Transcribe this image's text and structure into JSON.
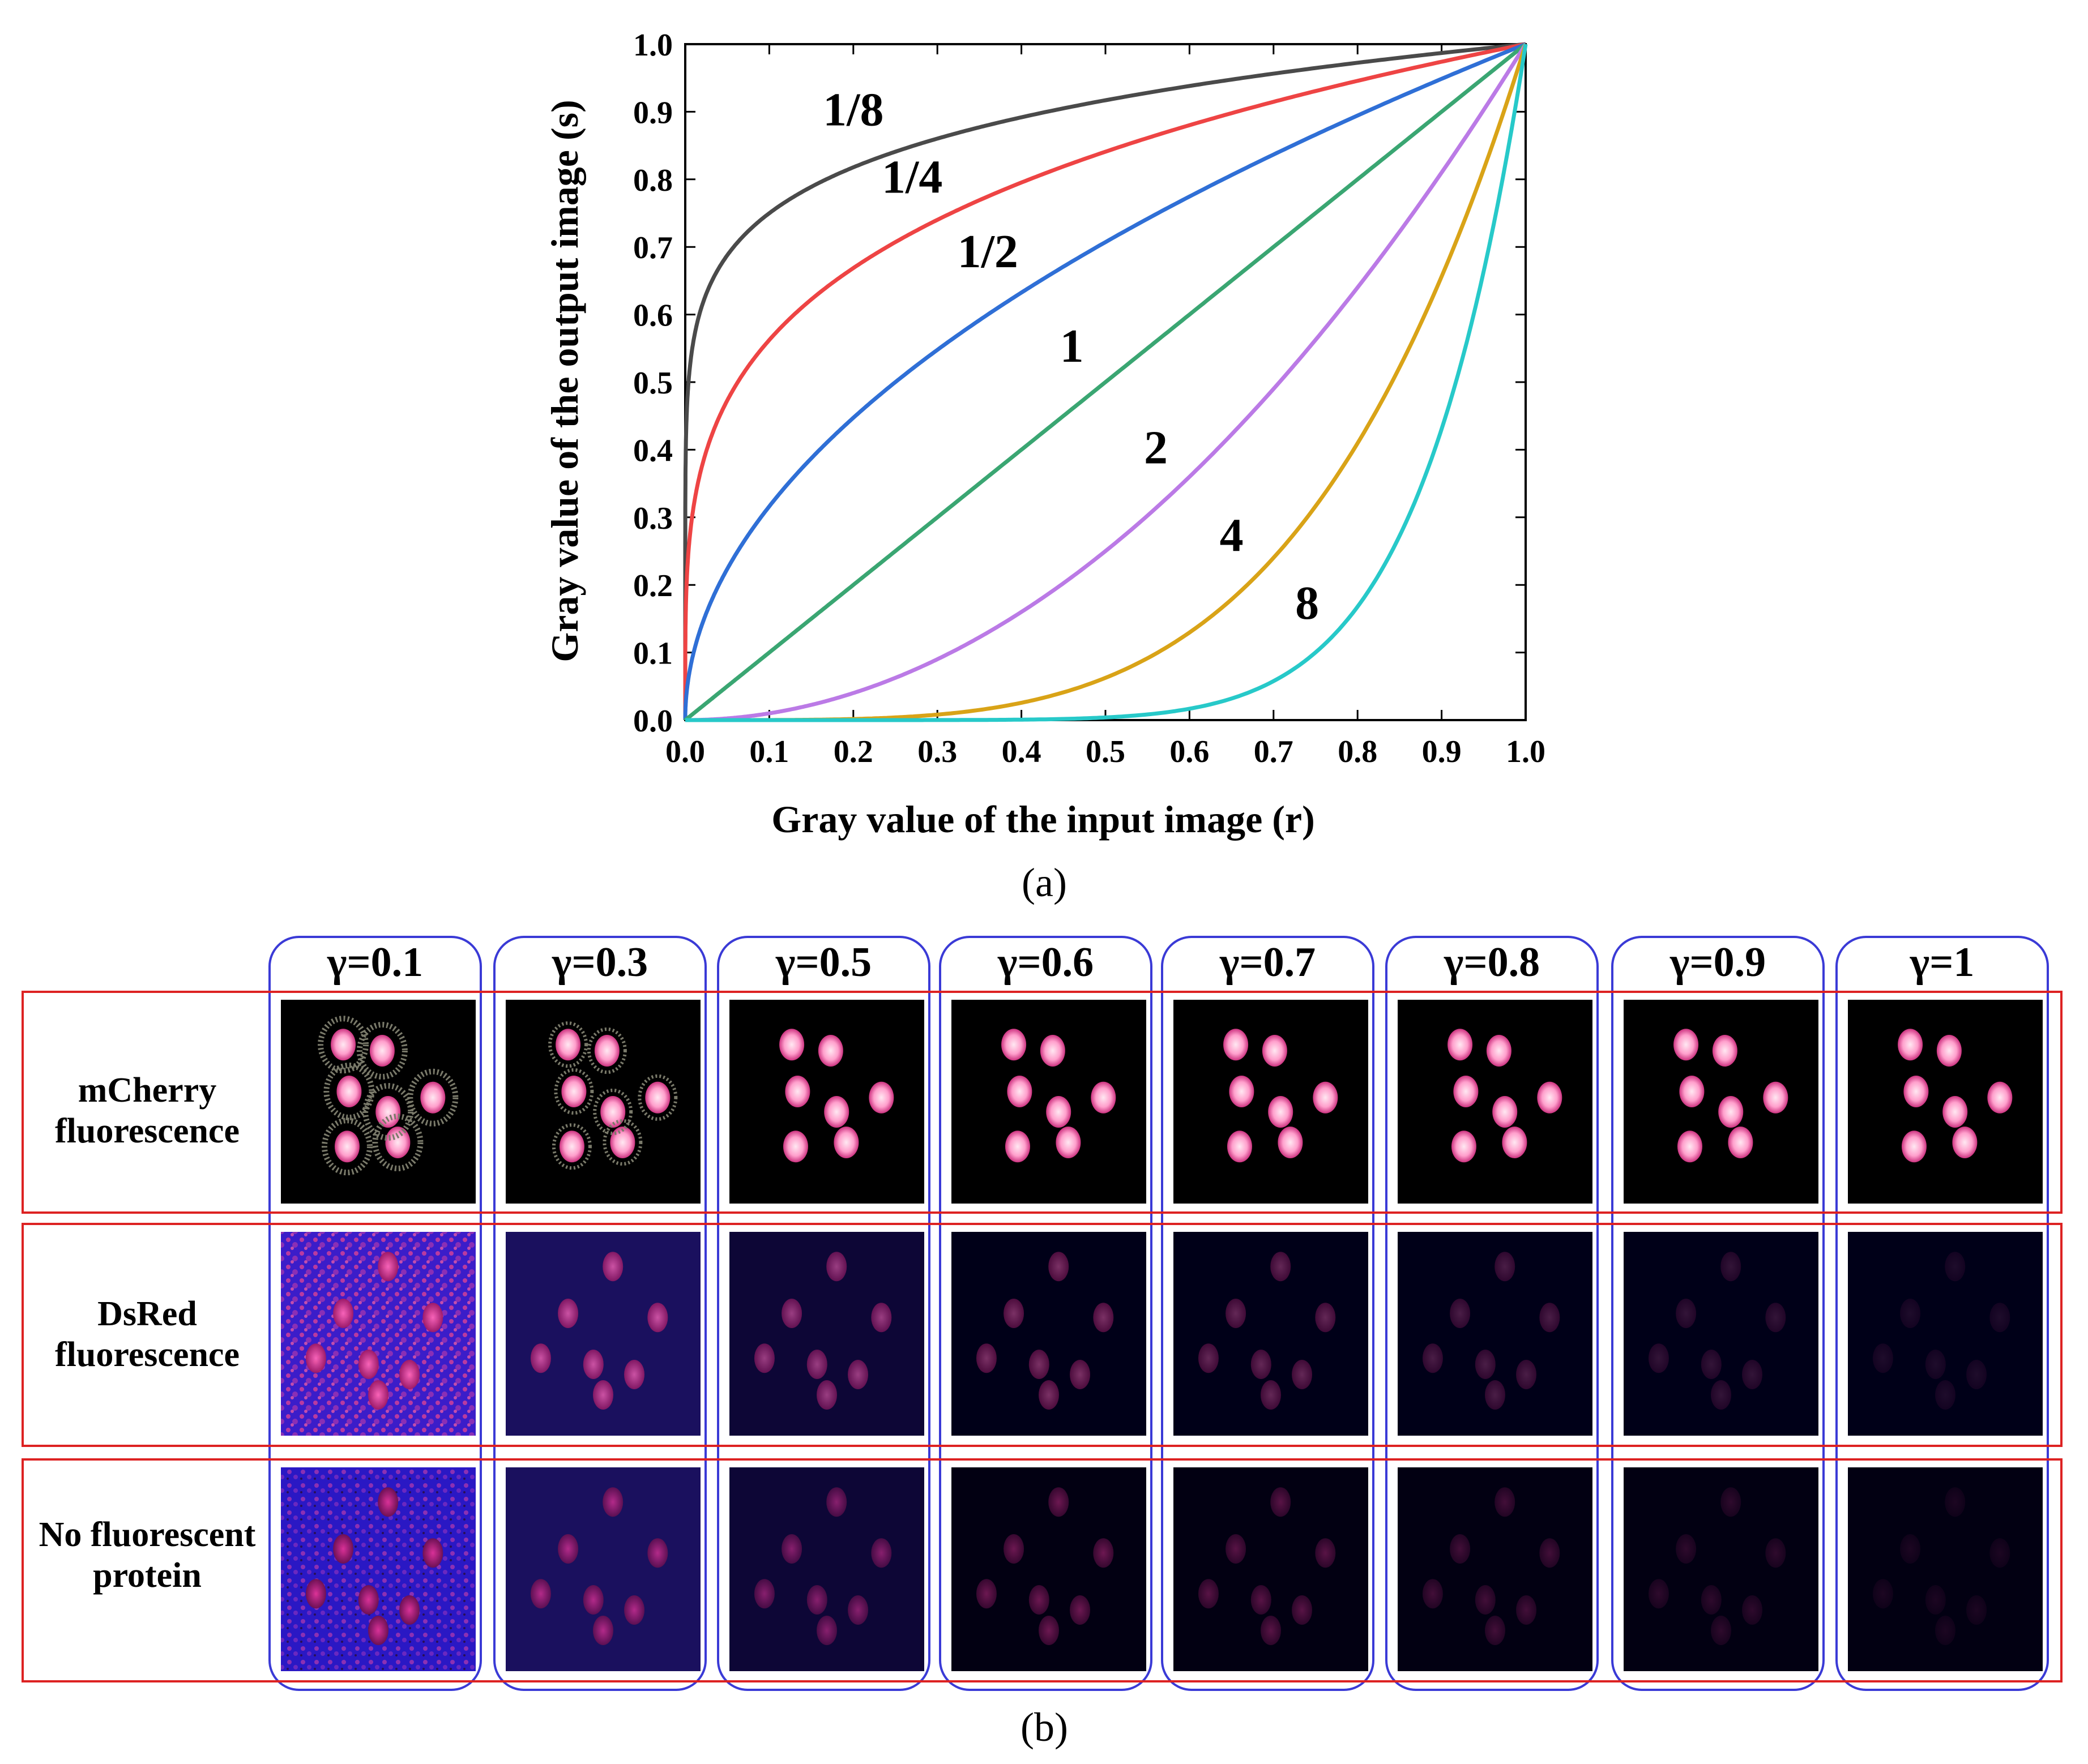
{
  "chart_data": {
    "type": "line",
    "title": "",
    "xlabel": "Gray value of the input image (r)",
    "ylabel": "Gray value of the output image (s)",
    "xlim": [
      0,
      1
    ],
    "ylim": [
      0,
      1
    ],
    "xticks": [
      "0.0",
      "0.1",
      "0.2",
      "0.3",
      "0.4",
      "0.5",
      "0.6",
      "0.7",
      "0.8",
      "0.9",
      "1.0"
    ],
    "yticks": [
      "0.0",
      "0.1",
      "0.2",
      "0.3",
      "0.4",
      "0.5",
      "0.6",
      "0.7",
      "0.8",
      "0.9",
      "1.0"
    ],
    "function": "s = r^gamma",
    "series": [
      {
        "name": "1/8",
        "gamma": 0.125,
        "color": "#4a4a4a",
        "label_pos": [
          0.2,
          0.88
        ]
      },
      {
        "name": "1/4",
        "gamma": 0.25,
        "color": "#ee4444",
        "label_pos": [
          0.27,
          0.78
        ]
      },
      {
        "name": "1/2",
        "gamma": 0.5,
        "color": "#2f6fd6",
        "label_pos": [
          0.36,
          0.67
        ]
      },
      {
        "name": "1",
        "gamma": 1,
        "color": "#3aa672",
        "label_pos": [
          0.46,
          0.53
        ]
      },
      {
        "name": "2",
        "gamma": 2,
        "color": "#bb7ae6",
        "label_pos": [
          0.56,
          0.38
        ]
      },
      {
        "name": "4",
        "gamma": 4,
        "color": "#d9a317",
        "label_pos": [
          0.65,
          0.25
        ]
      },
      {
        "name": "8",
        "gamma": 8,
        "color": "#27c9c9",
        "label_pos": [
          0.74,
          0.15
        ]
      }
    ]
  },
  "panel_a_label": "(a)",
  "panel_b_label": "(b)",
  "grid": {
    "columns": [
      "γ=0.1",
      "γ=0.3",
      "γ=0.5",
      "γ=0.6",
      "γ=0.7",
      "γ=0.8",
      "γ=0.9",
      "γ=1"
    ],
    "gammas": [
      0.1,
      0.3,
      0.5,
      0.6,
      0.7,
      0.8,
      0.9,
      1
    ],
    "rows": [
      {
        "label": "mCherry fluorescence",
        "bg": "#000000",
        "cell": "#ffd0e4"
      },
      {
        "label": "DsRed fluorescence",
        "bg": "#000018",
        "cell": "#e0288a"
      },
      {
        "label": "No fluorescent protein",
        "bg": "#020012",
        "cell": "#b8207a"
      }
    ],
    "frame_colors": {
      "column": "#3a3ad6",
      "row": "#dd2222"
    }
  }
}
